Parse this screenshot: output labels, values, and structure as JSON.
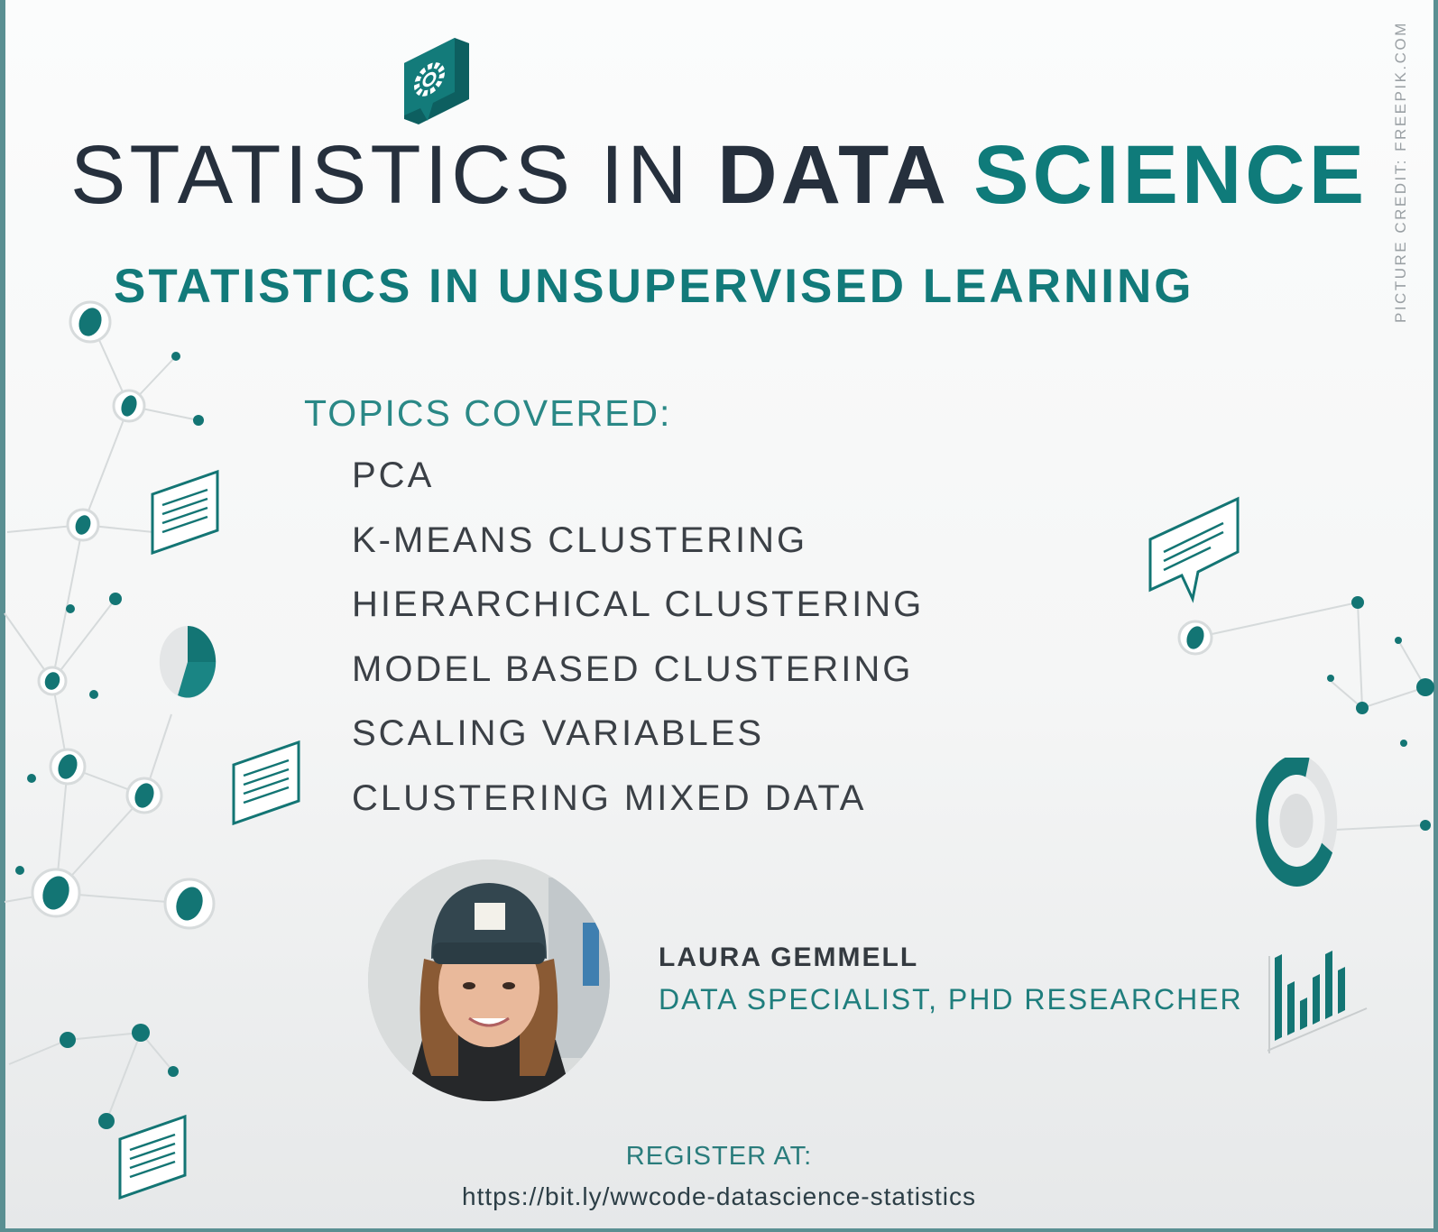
{
  "title": {
    "part1": "STATISTICS IN ",
    "part2": "DATA ",
    "part3": "SCIENCE"
  },
  "subtitle": "STATISTICS IN UNSUPERVISED LEARNING",
  "credit": "PICTURE CREDIT: FREEPIK.COM",
  "topics": {
    "heading": "TOPICS COVERED:",
    "items": [
      "PCA",
      "K-MEANS CLUSTERING",
      "HIERARCHICAL CLUSTERING",
      "MODEL BASED CLUSTERING",
      "SCALING VARIABLES",
      "CLUSTERING MIXED DATA"
    ]
  },
  "speaker": {
    "name": "LAURA GEMMELL",
    "role": "DATA SPECIALIST, PHD RESEARCHER"
  },
  "register": {
    "label": "REGISTER AT:",
    "url": "https://bit.ly/wwcode-datascience-statistics"
  },
  "colors": {
    "accent": "#127a7a",
    "dark": "#26303d",
    "frame": "#5a8f92"
  },
  "icons": [
    "gear-chat-icon",
    "network-nodes",
    "document-icon",
    "pie-chart-icon",
    "chat-bubble-icon",
    "donut-chart-icon",
    "bar-chart-icon"
  ]
}
